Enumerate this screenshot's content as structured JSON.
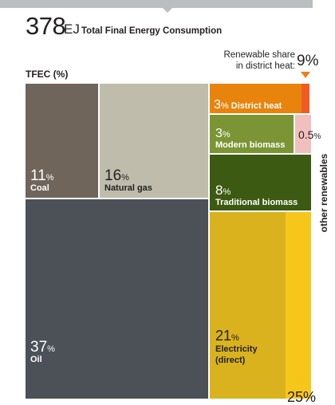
{
  "header": {
    "total_value": "378",
    "total_unit": "EJ",
    "total_label": "Total Final Energy Consumption"
  },
  "tfec_label": "TFEC (%)",
  "renewable_share": {
    "label_line1": "Renewable share",
    "label_line2": "in district heat:",
    "value": "9%"
  },
  "other_renewables_label": "other renewables",
  "bottom_partial_value": "25%",
  "colors": {
    "coal": "#6f655a",
    "natural_gas": "#bfbcab",
    "oil": "#4b5156",
    "district_heat": "#e8840c",
    "district_heat_renewable": "#f15a22",
    "modern_biomass": "#7b9534",
    "other_renewables_small": "#f2bfbf",
    "traditional_biomass": "#3c5a12",
    "electricity": "#d9b21e",
    "electricity_renewable": "#f7c61a",
    "top_bar": "#bbbdbf"
  },
  "chart_data": {
    "type": "treemap",
    "title": "Total Final Energy Consumption",
    "total": 378,
    "total_unit": "EJ",
    "label": "TFEC (%)",
    "series": [
      {
        "name": "Coal",
        "value": 11,
        "display": "11%",
        "text_color": "#ffffff"
      },
      {
        "name": "Natural gas",
        "value": 16,
        "display": "16%",
        "text_color": "#231f20"
      },
      {
        "name": "Oil",
        "value": 37,
        "display": "37%",
        "text_color": "#ffffff"
      },
      {
        "name": "District heat",
        "value": 3,
        "display": "3%",
        "text_color": "#ffffff"
      },
      {
        "name": "Modern biomass",
        "value": 3,
        "display": "3%",
        "text_color": "#ffffff"
      },
      {
        "name": "",
        "value": 0.5,
        "display": "0.5%",
        "text_color": "#231f20"
      },
      {
        "name": "Traditional biomass",
        "value": 8,
        "display": "8%",
        "text_color": "#ffffff"
      },
      {
        "name": "Electricity (direct)",
        "value": 21,
        "display": "21%",
        "text_color": "#231f20"
      }
    ],
    "renewable_share_district_heat": 9,
    "renewable_share_electricity": 25
  }
}
